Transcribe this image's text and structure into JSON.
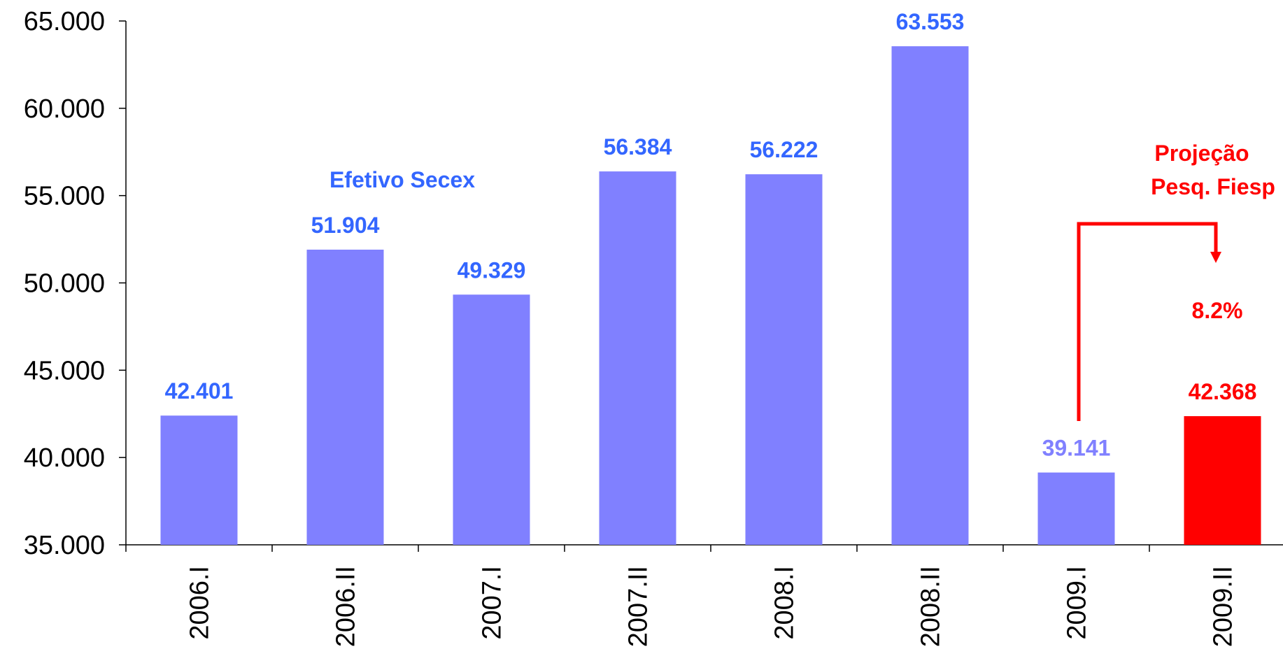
{
  "chart_data": {
    "type": "bar",
    "categories": [
      "2006.I",
      "2006.II",
      "2007.I",
      "2007.II",
      "2008.I",
      "2008.II",
      "2009.I",
      "2009.II"
    ],
    "values": [
      42401,
      51904,
      49329,
      56384,
      56222,
      63553,
      39141,
      42368
    ],
    "value_labels": [
      "42.401",
      "51.904",
      "49.329",
      "56.384",
      "56.222",
      "63.553",
      "39.141",
      "42.368"
    ],
    "ylim": [
      35000,
      65000
    ],
    "yticks": [
      35000,
      40000,
      45000,
      50000,
      55000,
      60000,
      65000
    ],
    "ytick_labels": [
      "35.000",
      "40.000",
      "45.000",
      "50.000",
      "55.000",
      "60.000",
      "65.000"
    ],
    "grid": false,
    "colors": {
      "bar_default": "#8080FF",
      "bar_projection": "#FF0000",
      "label_default": "#3366FF",
      "label_faded": "#8080FF",
      "label_projection": "#FF0000",
      "axis": "#000000"
    },
    "bar_styles": [
      "default",
      "default",
      "default",
      "default",
      "default",
      "default",
      "faded",
      "projection"
    ],
    "annotations": {
      "actual_series_label": "Efetivo Secex",
      "projection_label_line1": "Projeção",
      "projection_label_line2": "Pesq. Fiesp",
      "growth_label": "8.2%"
    }
  }
}
